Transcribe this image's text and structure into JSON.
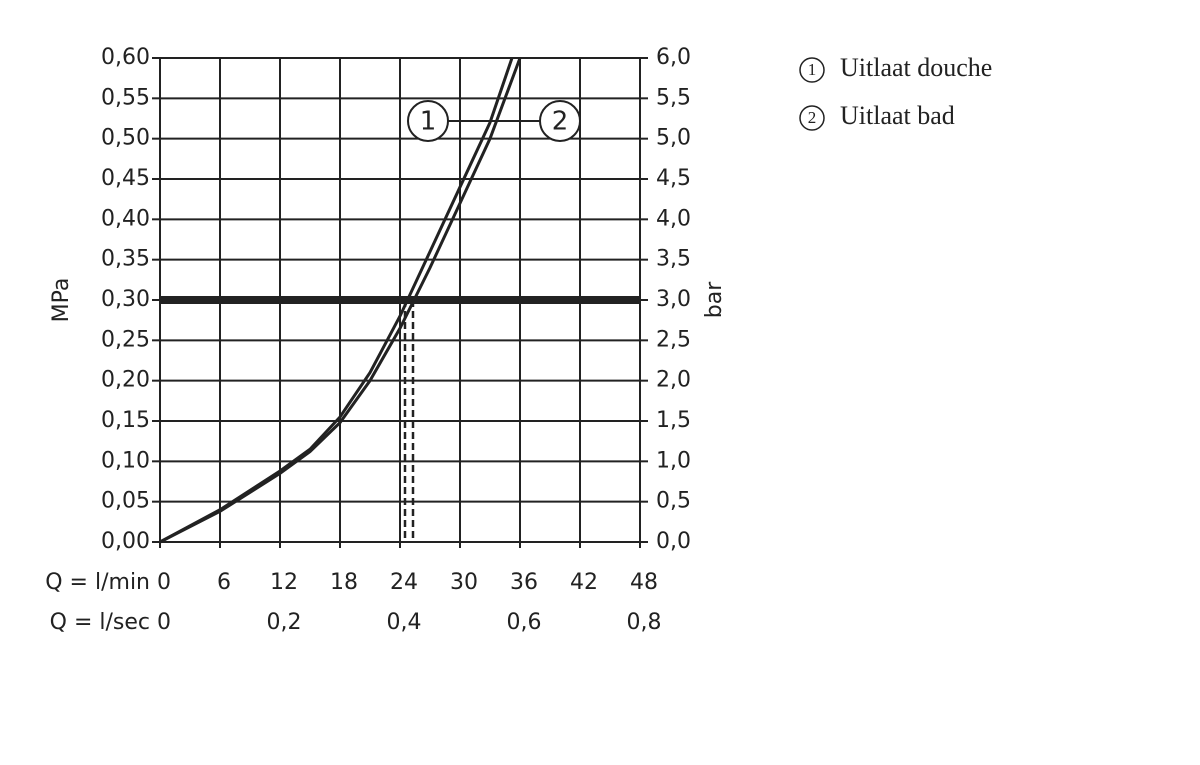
{
  "chart_data": {
    "type": "line",
    "ylabel": "MPa",
    "y2label": "bar",
    "xlabel": "Q = l/min",
    "x2label": "Q = l/sec",
    "xlim": [
      0,
      48
    ],
    "xticks": [
      0,
      6,
      12,
      18,
      24,
      30,
      36,
      42,
      48
    ],
    "x2lim": [
      0,
      0.8
    ],
    "x2ticks": [
      0,
      {
        "value": 0.2,
        "label": "0,2"
      },
      {
        "value": 0.4,
        "label": "0,4"
      },
      {
        "value": 0.6,
        "label": "0,6"
      },
      {
        "value": 0.8,
        "label": "0,8"
      }
    ],
    "ylim": [
      0,
      0.6
    ],
    "yticks": [
      {
        "value": 0,
        "label": "0,00"
      },
      {
        "value": 0.05,
        "label": "0,05"
      },
      {
        "value": 0.1,
        "label": "0,10"
      },
      {
        "value": 0.15,
        "label": "0,15"
      },
      {
        "value": 0.2,
        "label": "0,20"
      },
      {
        "value": 0.25,
        "label": "0,25"
      },
      {
        "value": 0.3,
        "label": "0,30"
      },
      {
        "value": 0.35,
        "label": "0,35"
      },
      {
        "value": 0.4,
        "label": "0,40"
      },
      {
        "value": 0.45,
        "label": "0,45"
      },
      {
        "value": 0.5,
        "label": "0,50"
      },
      {
        "value": 0.55,
        "label": "0,55"
      },
      {
        "value": 0.6,
        "label": "0,60"
      }
    ],
    "y2lim": [
      0,
      6
    ],
    "y2ticks": [
      {
        "value": 0,
        "label": "0,0"
      },
      {
        "value": 0.5,
        "label": "0,5"
      },
      {
        "value": 1,
        "label": "1,0"
      },
      {
        "value": 1.5,
        "label": "1,5"
      },
      {
        "value": 2,
        "label": "2,0"
      },
      {
        "value": 2.5,
        "label": "2,5"
      },
      {
        "value": 3,
        "label": "3,0"
      },
      {
        "value": 3.5,
        "label": "3,5"
      },
      {
        "value": 4,
        "label": "4,0"
      },
      {
        "value": 4.5,
        "label": "4,5"
      },
      {
        "value": 5,
        "label": "5,0"
      },
      {
        "value": 5.5,
        "label": "5,5"
      },
      {
        "value": 6,
        "label": "6,0"
      }
    ],
    "grid": true,
    "reference_line": 0.3,
    "drop_lines": [
      24.5,
      25.3
    ],
    "series": [
      {
        "name": "Uitlaat douche",
        "label": "1",
        "color": "#222222",
        "x": [
          0,
          6,
          12,
          15,
          18,
          21,
          24,
          27,
          30,
          33,
          35.2
        ],
        "values": [
          0,
          0.04,
          0.088,
          0.115,
          0.155,
          0.21,
          0.28,
          0.36,
          0.44,
          0.52,
          0.6
        ]
      },
      {
        "name": "Uitlaat bad",
        "label": "2",
        "color": "#222222",
        "x": [
          0,
          6,
          12,
          15,
          18,
          21,
          24,
          27,
          30,
          33,
          36
        ],
        "values": [
          0,
          0.038,
          0.085,
          0.112,
          0.148,
          0.2,
          0.265,
          0.34,
          0.42,
          0.5,
          0.6
        ]
      }
    ]
  }
}
